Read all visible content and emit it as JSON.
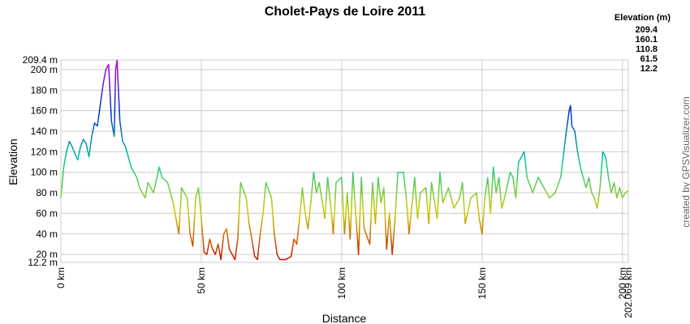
{
  "chart_data": {
    "type": "line",
    "title": "Cholet-Pays de Loire 2011",
    "xlabel": "Distance",
    "ylabel": "Elevation",
    "credit": "created by GPSVisualizer.com",
    "legend": {
      "title": "Elevation (m)",
      "items": [
        {
          "value": 209.4,
          "color": "#cc00cc"
        },
        {
          "value": 160.1,
          "color": "#0033cc"
        },
        {
          "value": 110.8,
          "color": "#00cc99"
        },
        {
          "value": 61.5,
          "color": "#cccc00"
        },
        {
          "value": 12.2,
          "color": "#cc0000"
        }
      ]
    },
    "grid": true,
    "xlim": [
      0,
      202.069
    ],
    "ylim": [
      12.2,
      209.4
    ],
    "xticks": [
      {
        "value": 0,
        "label": "0 km"
      },
      {
        "value": 50,
        "label": "50 km"
      },
      {
        "value": 100,
        "label": "100 km"
      },
      {
        "value": 150,
        "label": "150 km"
      },
      {
        "value": 200,
        "label": "200 km"
      },
      {
        "value": 202.069,
        "label": "202.069 km"
      }
    ],
    "yticks": [
      {
        "value": 12.2,
        "label": "12.2 m"
      },
      {
        "value": 20,
        "label": "20 m"
      },
      {
        "value": 40,
        "label": "40 m"
      },
      {
        "value": 60,
        "label": "60 m"
      },
      {
        "value": 80,
        "label": "80 m"
      },
      {
        "value": 100,
        "label": "100 m"
      },
      {
        "value": 120,
        "label": "120 m"
      },
      {
        "value": 140,
        "label": "140 m"
      },
      {
        "value": 160,
        "label": "160 m"
      },
      {
        "value": 180,
        "label": "180 m"
      },
      {
        "value": 200,
        "label": "200 m"
      },
      {
        "value": 209.4,
        "label": "209.4 m"
      }
    ],
    "x": [
      0,
      1,
      2,
      3,
      4,
      5,
      6,
      7,
      8,
      9,
      10,
      11,
      12,
      13,
      14,
      15,
      16,
      17,
      18,
      19,
      19.5,
      20,
      21,
      22,
      23,
      25,
      27,
      28,
      30,
      31,
      33,
      35,
      36,
      38,
      40,
      42,
      43,
      45,
      46,
      47,
      48,
      49,
      50,
      51,
      52,
      53,
      54,
      55,
      56,
      57,
      58,
      59,
      60,
      61,
      62,
      63,
      64,
      66,
      67,
      68,
      69,
      70,
      71,
      72,
      73,
      75,
      76,
      77,
      78,
      80,
      82,
      83,
      84,
      85,
      86,
      87,
      88,
      89,
      90,
      91,
      92,
      94,
      95,
      96,
      97,
      98,
      100,
      101,
      102,
      103,
      104,
      105,
      106,
      107,
      108,
      110,
      111,
      112,
      113,
      114,
      115,
      116,
      117,
      118,
      119,
      120,
      122,
      123,
      124,
      126,
      127,
      128,
      130,
      131,
      132,
      134,
      135,
      136,
      138,
      140,
      142,
      143,
      144,
      146,
      148,
      149,
      150,
      151,
      152,
      153,
      154,
      155,
      156,
      157,
      158,
      160,
      161,
      162,
      163,
      165,
      166,
      168,
      170,
      172,
      174,
      176,
      178,
      180,
      181,
      181.5,
      182,
      183,
      184,
      185,
      186,
      187,
      188,
      189,
      190,
      191,
      192,
      193,
      194,
      195,
      196,
      197,
      198,
      199,
      200,
      201,
      202.069
    ],
    "values": [
      75,
      105,
      120,
      130,
      125,
      118,
      112,
      125,
      132,
      128,
      115,
      135,
      148,
      145,
      165,
      185,
      200,
      205,
      150,
      135,
      200,
      209,
      150,
      130,
      125,
      105,
      95,
      85,
      75,
      90,
      80,
      105,
      95,
      90,
      70,
      40,
      85,
      75,
      40,
      28,
      75,
      85,
      55,
      22,
      20,
      35,
      25,
      20,
      30,
      15,
      40,
      45,
      25,
      20,
      15,
      35,
      90,
      75,
      50,
      35,
      18,
      15,
      40,
      60,
      90,
      75,
      40,
      20,
      15,
      15,
      18,
      35,
      30,
      55,
      85,
      60,
      45,
      70,
      100,
      80,
      90,
      55,
      95,
      70,
      40,
      90,
      95,
      40,
      80,
      35,
      100,
      60,
      20,
      95,
      45,
      30,
      90,
      50,
      95,
      70,
      85,
      25,
      60,
      20,
      55,
      100,
      100,
      75,
      40,
      95,
      55,
      80,
      85,
      50,
      90,
      55,
      100,
      70,
      85,
      65,
      75,
      90,
      50,
      75,
      80,
      55,
      40,
      75,
      95,
      60,
      105,
      80,
      95,
      65,
      75,
      100,
      95,
      75,
      110,
      120,
      95,
      80,
      95,
      85,
      75,
      80,
      95,
      140,
      160,
      165,
      145,
      140,
      120,
      105,
      95,
      85,
      95,
      80,
      75,
      65,
      85,
      120,
      115,
      95,
      80,
      90,
      75,
      85,
      75,
      80,
      82
    ]
  }
}
